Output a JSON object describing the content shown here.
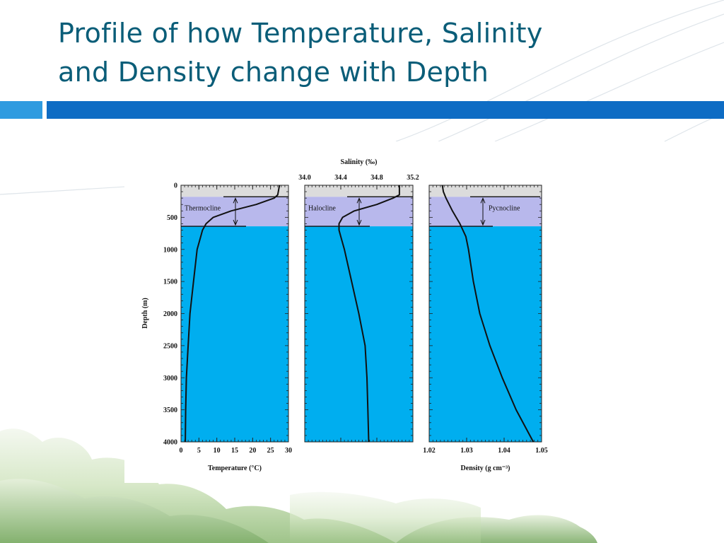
{
  "slide": {
    "title_line1": "Profile of how Temperature, Salinity",
    "title_line2": "and Density change with Depth"
  },
  "colors": {
    "title": "#0a5d78",
    "accent_bar_dark": "#0e6cc4",
    "accent_bar_light": "#2f9be0",
    "deep_water": "#00aeef",
    "cline_zone": "#b8b8ec",
    "surface_zone": "#dcdcdc"
  },
  "chart_data": {
    "type": "line",
    "y_axis": {
      "label": "Depth (m)",
      "range": [
        0,
        4000
      ],
      "inverted": true,
      "ticks": [
        "0",
        "500",
        "1000",
        "1500",
        "2000",
        "2500",
        "3000",
        "3500",
        "4000"
      ]
    },
    "zones": {
      "surface_mixed_layer_depth": [
        0,
        180
      ],
      "cline_depth": [
        180,
        640
      ]
    },
    "panels": [
      {
        "name": "temperature",
        "xlabel": "Temperature (°C)",
        "xlabel_position": "bottom",
        "xlim": [
          0,
          30
        ],
        "ticks": [
          0,
          5,
          10,
          15,
          20,
          25,
          30
        ],
        "tick_labels": [
          "0",
          "5",
          "10",
          "15",
          "20",
          "25",
          "30"
        ],
        "cline_label": "Thermocline",
        "profile": [
          {
            "depth": 0,
            "value": 27.5
          },
          {
            "depth": 150,
            "value": 27.0
          },
          {
            "depth": 200,
            "value": 26.0
          },
          {
            "depth": 300,
            "value": 21.0
          },
          {
            "depth": 400,
            "value": 14.0
          },
          {
            "depth": 500,
            "value": 9.0
          },
          {
            "depth": 600,
            "value": 7.0
          },
          {
            "depth": 700,
            "value": 6.0
          },
          {
            "depth": 800,
            "value": 5.5
          },
          {
            "depth": 1000,
            "value": 4.5
          },
          {
            "depth": 1500,
            "value": 3.5
          },
          {
            "depth": 2000,
            "value": 2.5
          },
          {
            "depth": 2500,
            "value": 2.0
          },
          {
            "depth": 3000,
            "value": 1.5
          },
          {
            "depth": 3500,
            "value": 1.3
          },
          {
            "depth": 4000,
            "value": 1.2
          }
        ]
      },
      {
        "name": "salinity",
        "xlabel": "Salinity (‰)",
        "xlabel_position": "top",
        "xlim": [
          34.0,
          35.2
        ],
        "ticks": [
          34.0,
          34.4,
          34.8,
          35.2
        ],
        "tick_labels": [
          "34.0",
          "34.4",
          "34.8",
          "35.2"
        ],
        "cline_label": "Halocline",
        "profile": [
          {
            "depth": 0,
            "value": 35.05
          },
          {
            "depth": 150,
            "value": 35.05
          },
          {
            "depth": 200,
            "value": 34.98
          },
          {
            "depth": 300,
            "value": 34.8
          },
          {
            "depth": 400,
            "value": 34.55
          },
          {
            "depth": 500,
            "value": 34.42
          },
          {
            "depth": 600,
            "value": 34.38
          },
          {
            "depth": 700,
            "value": 34.38
          },
          {
            "depth": 800,
            "value": 34.4
          },
          {
            "depth": 1000,
            "value": 34.44
          },
          {
            "depth": 1500,
            "value": 34.52
          },
          {
            "depth": 2000,
            "value": 34.6
          },
          {
            "depth": 2500,
            "value": 34.67
          },
          {
            "depth": 3000,
            "value": 34.69
          },
          {
            "depth": 3500,
            "value": 34.7
          },
          {
            "depth": 4000,
            "value": 34.71
          }
        ]
      },
      {
        "name": "density",
        "xlabel": "Density (g cm⁻³)",
        "xlabel_position": "bottom",
        "xlim": [
          1.02,
          1.05
        ],
        "ticks": [
          1.02,
          1.03,
          1.04,
          1.05
        ],
        "tick_labels": [
          "1.02",
          "1.03",
          "1.04",
          "1.05"
        ],
        "cline_label": "Pycnocline",
        "profile": [
          {
            "depth": 0,
            "value": 1.0235
          },
          {
            "depth": 100,
            "value": 1.0238
          },
          {
            "depth": 200,
            "value": 1.0245
          },
          {
            "depth": 400,
            "value": 1.0262
          },
          {
            "depth": 500,
            "value": 1.0272
          },
          {
            "depth": 600,
            "value": 1.0282
          },
          {
            "depth": 700,
            "value": 1.029
          },
          {
            "depth": 800,
            "value": 1.0298
          },
          {
            "depth": 1000,
            "value": 1.0305
          },
          {
            "depth": 1500,
            "value": 1.0318
          },
          {
            "depth": 2000,
            "value": 1.0335
          },
          {
            "depth": 2500,
            "value": 1.0362
          },
          {
            "depth": 3000,
            "value": 1.0395
          },
          {
            "depth": 3500,
            "value": 1.0432
          },
          {
            "depth": 4000,
            "value": 1.0478
          }
        ]
      }
    ]
  }
}
